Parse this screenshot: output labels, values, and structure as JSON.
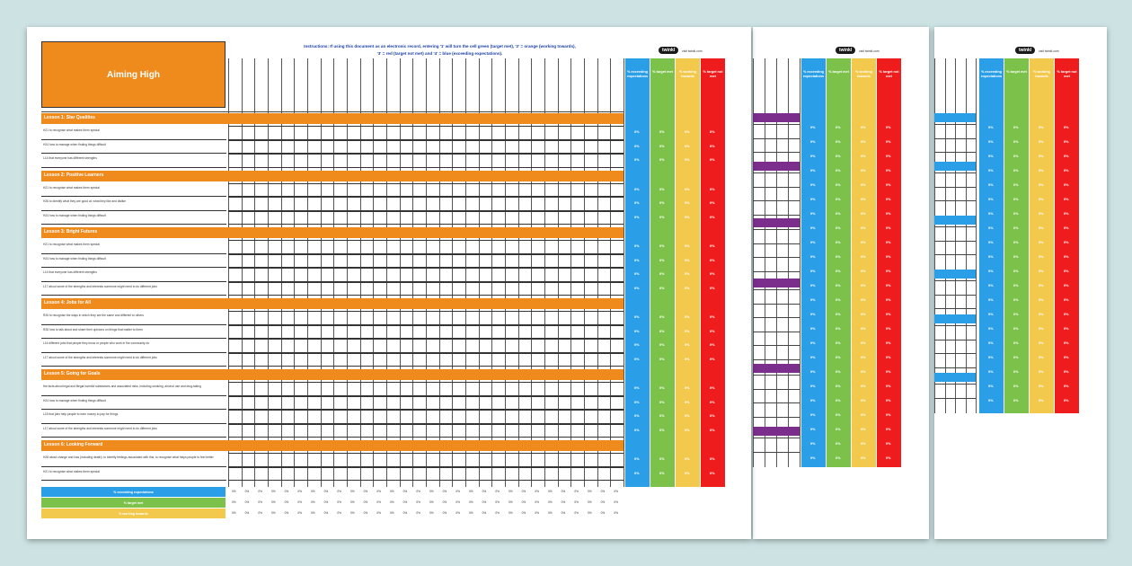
{
  "sheet1": {
    "title": "Aiming High",
    "instructions": [
      "Instructions: If using this document as an electronic record, entering '1' will turn the cell green (target met), '2' = orange (working towards),",
      "'3' = red (target not met) and '4' = blue (exceeding expectations)."
    ],
    "logo": "twinkl",
    "logo_url": "visit twinkl.com",
    "strips": [
      {
        "label": "% exceeding expectations",
        "color": "#2a9fe8"
      },
      {
        "label": "% target met",
        "color": "#7cc24a"
      },
      {
        "label": "% working towards",
        "color": "#f2c94c"
      },
      {
        "label": "% target not met",
        "color": "#ee1c1c"
      }
    ],
    "lessons": [
      {
        "title": "Lesson 1: Star Qualities",
        "objectives": [
          "H21 to recognise what makes them special",
          "H24 how to manage when finding things difficult",
          "L14 that everyone has different strengths"
        ]
      },
      {
        "title": "Lesson 2: Positive Learners",
        "objectives": [
          "H21 to recognise what makes them special",
          "H26 to identify what they are good at, what they like and dislike",
          "H24 how to manage when finding things difficult"
        ]
      },
      {
        "title": "Lesson 3: Bright Futures",
        "objectives": [
          "H21 to recognise what makes them special",
          "H24 how to manage when finding things difficult",
          "L14 that everyone has different strengths",
          "L17 about some of the strengths and interests someone might need to do different jobs"
        ]
      },
      {
        "title": "Lesson 4: Jobs for All",
        "objectives": [
          "R26 to recognise the ways in which they are the same and different to others",
          "R28 how to talk about and share their opinions on things that matter to them",
          "L16 different jobs that people they know or people who work in the community do",
          "L17 about some of the strengths and interests someone might need to do different jobs"
        ]
      },
      {
        "title": "Lesson 5: Going for Goals",
        "objectives": [
          "the facts about legal and illegal harmful substances and associated risks, including smoking, alcohol use and drug-taking",
          "H24 how to manage when finding things difficult",
          "L15 that jobs help people to earn money to pay for things",
          "L17 about some of the strengths and interests someone might need to do different jobs"
        ]
      },
      {
        "title": "Lesson 6: Looking Forward",
        "objectives": [
          "H28 about change and loss (including death); to identify feelings associated with this; to recognise what helps people to feel better",
          "H21 to recognise what makes them special"
        ]
      }
    ],
    "pct_value": "0%",
    "legend": [
      {
        "label": "% exceeding expectations",
        "color": "#2a9fe8"
      },
      {
        "label": "% target met",
        "color": "#7cc24a"
      },
      {
        "label": "% working towards",
        "color": "#f2c94c"
      }
    ]
  },
  "sheet2": {
    "logo": "twinkl",
    "logo_url": "visit twinkl.com",
    "band_color": "#7b2e8c",
    "strips": [
      {
        "label": "% exceeding expectations",
        "color": "#2a9fe8"
      },
      {
        "label": "% target met",
        "color": "#7cc24a"
      },
      {
        "label": "% working towards",
        "color": "#f2c94c"
      },
      {
        "label": "% target not met",
        "color": "#ee1c1c"
      }
    ]
  },
  "sheet3": {
    "logo": "twinkl",
    "logo_url": "visit twinkl.com",
    "band_color": "#2a9fe8",
    "strips": [
      {
        "label": "% exceeding expectations",
        "color": "#2a9fe8"
      },
      {
        "label": "% target met",
        "color": "#7cc24a"
      },
      {
        "label": "% working towards",
        "color": "#f2c94c"
      },
      {
        "label": "% target not met",
        "color": "#ee1c1c"
      }
    ]
  }
}
